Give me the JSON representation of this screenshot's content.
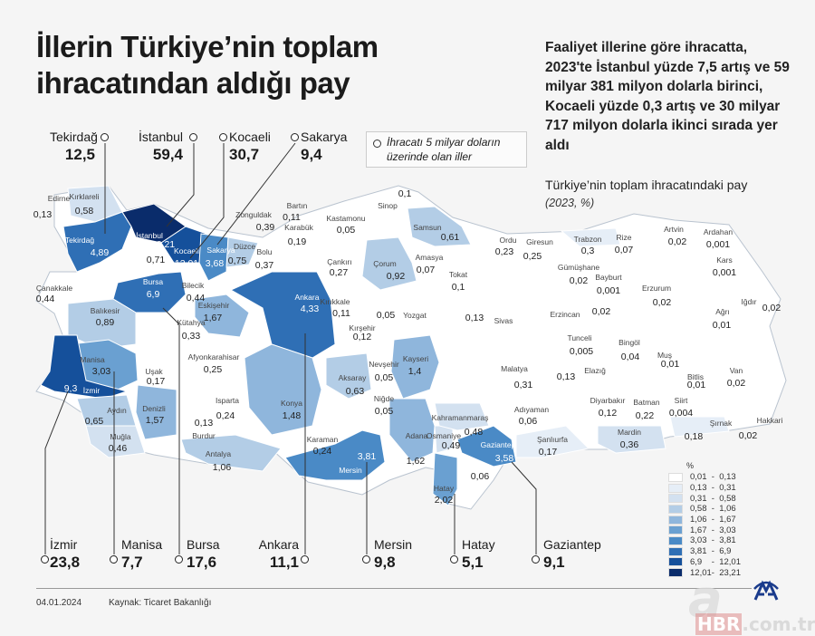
{
  "title": "İllerin Türkiye’nin toplam ihracatından aldığı pay",
  "intro": "Faaliyet illerine göre ihracatta, 2023'te İstanbul yüzde 7,5 artış ve 59 milyar 381 milyon dolarla birinci, Kocaeli yüzde 0,3 artış ve 30 milyar 717 milyon dolarla ikinci sırada yer aldı",
  "map_title": "Türkiye’nin toplam ihracatındaki pay",
  "map_subtitle": "(2023, %)",
  "note": "İhracatı 5 milyar doların üzerinde olan iller",
  "callouts_top": [
    {
      "name": "Tekirdağ",
      "value": "12,5"
    },
    {
      "name": "İstanbul",
      "value": "59,4"
    },
    {
      "name": "Kocaeli",
      "value": "30,7"
    },
    {
      "name": "Sakarya",
      "value": "9,4"
    }
  ],
  "callouts_bottom": [
    {
      "name": "İzmir",
      "value": "23,8"
    },
    {
      "name": "Manisa",
      "value": "7,7"
    },
    {
      "name": "Bursa",
      "value": "17,6"
    },
    {
      "name": "Ankara",
      "value": "11,1"
    },
    {
      "name": "Mersin",
      "value": "9,8"
    },
    {
      "name": "Hatay",
      "value": "5,1"
    },
    {
      "name": "Gaziantep",
      "value": "9,1"
    }
  ],
  "legend": {
    "unit": "%",
    "bins": [
      {
        "label": "0,01  -  0,13",
        "color": "#ffffff"
      },
      {
        "label": "0,13  -  0,31",
        "color": "#e6eef7"
      },
      {
        "label": "0,31  -  0,58",
        "color": "#d3e1f0"
      },
      {
        "label": "0,58  -  1,06",
        "color": "#b3cde6"
      },
      {
        "label": "1,06  -  1,67",
        "color": "#8fb6dc"
      },
      {
        "label": "1,67  -  3,03",
        "color": "#6aa0d1"
      },
      {
        "label": "3,03  -  3,81",
        "color": "#4a8ac6"
      },
      {
        "label": "3,81  -  6,9",
        "color": "#2f6fb5"
      },
      {
        "label": "6,9    -  12,01",
        "color": "#15509b"
      },
      {
        "label": "12,01-  23,21",
        "color": "#0a2c6b"
      }
    ]
  },
  "provinces": [
    {
      "name": "Edirne",
      "value": "0,13"
    },
    {
      "name": "Kırklareli",
      "value": "0,58"
    },
    {
      "name": "Tekirdağ",
      "value": "4,89"
    },
    {
      "name": "İstanbul",
      "value": "23,21"
    },
    {
      "name": "Kocaeli",
      "value": "12,01"
    },
    {
      "name": "",
      "value": "0,71"
    },
    {
      "name": "Sakarya",
      "value": "3,68"
    },
    {
      "name": "Düzce",
      "value": "0,75"
    },
    {
      "name": "Bolu",
      "value": "0,37"
    },
    {
      "name": "Zonguldak",
      "value": "0,39"
    },
    {
      "name": "Bartın",
      "value": "0,11"
    },
    {
      "name": "Karabük",
      "value": "0,19"
    },
    {
      "name": "Kastamonu",
      "value": "0,05"
    },
    {
      "name": "Sinop",
      "value": "0,1"
    },
    {
      "name": "Samsun",
      "value": "0,61"
    },
    {
      "name": "Çorum",
      "value": "0,92"
    },
    {
      "name": "Amasya",
      "value": "0,07"
    },
    {
      "name": "Tokat",
      "value": "0,1"
    },
    {
      "name": "Çankırı",
      "value": "0,27"
    },
    {
      "name": "Bursa",
      "value": "6,9"
    },
    {
      "name": "Bilecik",
      "value": "0,44"
    },
    {
      "name": "Eskişehir",
      "value": "1,67"
    },
    {
      "name": "Kütahya",
      "value": "0,33"
    },
    {
      "name": "Çanakkale",
      "value": "0,44"
    },
    {
      "name": "Balıkesir",
      "value": "0,89"
    },
    {
      "name": "Ankara",
      "value": "4,33"
    },
    {
      "name": "Kırıkkale",
      "value": "0,11"
    },
    {
      "name": "Yozgat",
      "value": "0,05"
    },
    {
      "name": "Kırşehir",
      "value": "0,12"
    },
    {
      "name": "Sivas",
      "value": "0,13"
    },
    {
      "name": "Manisa",
      "value": "3,03"
    },
    {
      "name": "Uşak",
      "value": "0,17"
    },
    {
      "name": "Afyonkarahisar",
      "value": "0,25"
    },
    {
      "name": "İzmir",
      "value": "9,3"
    },
    {
      "name": "Aydın",
      "value": "0,65"
    },
    {
      "name": "Denizli",
      "value": "1,57"
    },
    {
      "name": "Muğla",
      "value": "0,46"
    },
    {
      "name": "Isparta",
      "value": "0,24"
    },
    {
      "name": "Burdur",
      "value": "0,13"
    },
    {
      "name": "Antalya",
      "value": "1,06"
    },
    {
      "name": "Konya",
      "value": "1,48"
    },
    {
      "name": "Karaman",
      "value": "0,24"
    },
    {
      "name": "Mersin",
      "value": "3,81"
    },
    {
      "name": "Aksaray",
      "value": "0,63"
    },
    {
      "name": "Nevşehir",
      "value": "0,05"
    },
    {
      "name": "Niğde",
      "value": "0,05"
    },
    {
      "name": "Kayseri",
      "value": "1,4"
    },
    {
      "name": "Adana",
      "value": "1,62"
    },
    {
      "name": "Osmaniye",
      "value": "0,49"
    },
    {
      "name": "Kahramanmaraş",
      "value": "0,48"
    },
    {
      "name": "Gaziantep",
      "value": "3,58"
    },
    {
      "name": "",
      "value": "0,06"
    },
    {
      "name": "Hatay",
      "value": "2,02"
    },
    {
      "name": "Adıyaman",
      "value": "0,06"
    },
    {
      "name": "Şanlıurfa",
      "value": "0,17"
    },
    {
      "name": "Malatya",
      "value": "0,31"
    },
    {
      "name": "Elazığ",
      "value": "0,13"
    },
    {
      "name": "Tunceli",
      "value": "0,005"
    },
    {
      "name": "Bingöl",
      "value": "0,04"
    },
    {
      "name": "Erzincan",
      "value": "0,02"
    },
    {
      "name": "Erzurum",
      "value": "0,02"
    },
    {
      "name": "Bayburt",
      "value": "0,001"
    },
    {
      "name": "Gümüşhane",
      "value": "0,02"
    },
    {
      "name": "Ordu",
      "value": "0,23"
    },
    {
      "name": "Giresun",
      "value": "0,25"
    },
    {
      "name": "Trabzon",
      "value": "0,3"
    },
    {
      "name": "Rize",
      "value": "0,07"
    },
    {
      "name": "Artvin",
      "value": "0,02"
    },
    {
      "name": "Ardahan",
      "value": "0,001"
    },
    {
      "name": "Kars",
      "value": "0,001"
    },
    {
      "name": "Iğdır",
      "value": "0,02"
    },
    {
      "name": "Ağrı",
      "value": "0,01"
    },
    {
      "name": "Muş",
      "value": "0,01"
    },
    {
      "name": "Bitlis",
      "value": "0,01"
    },
    {
      "name": "Van",
      "value": "0,02"
    },
    {
      "name": "Diyarbakır",
      "value": "0,12"
    },
    {
      "name": "Batman",
      "value": "0,22"
    },
    {
      "name": "Siirt",
      "value": "0,004"
    },
    {
      "name": "Şırnak",
      "value": "0,18"
    },
    {
      "name": "Hakkari",
      "value": "0,02"
    },
    {
      "name": "Mardin",
      "value": "0,36"
    }
  ],
  "footer": {
    "date": "04.01.2024",
    "source": "Kaynak: Ticaret Bakanlığı"
  },
  "logos": {
    "agency": "AA",
    "watermark": "a HBR.com.tr"
  }
}
